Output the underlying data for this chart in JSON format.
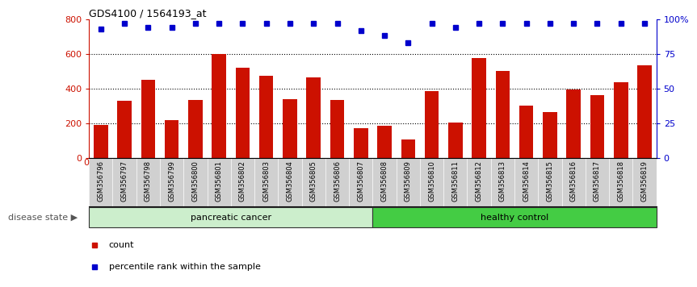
{
  "title": "GDS4100 / 1564193_at",
  "categories": [
    "GSM356796",
    "GSM356797",
    "GSM356798",
    "GSM356799",
    "GSM356800",
    "GSM356801",
    "GSM356802",
    "GSM356803",
    "GSM356804",
    "GSM356805",
    "GSM356806",
    "GSM356807",
    "GSM356808",
    "GSM356809",
    "GSM356810",
    "GSM356811",
    "GSM356812",
    "GSM356813",
    "GSM356814",
    "GSM356815",
    "GSM356816",
    "GSM356817",
    "GSM356818",
    "GSM356819"
  ],
  "bar_values": [
    190,
    330,
    450,
    215,
    335,
    600,
    520,
    475,
    340,
    465,
    335,
    170,
    185,
    105,
    385,
    205,
    575,
    500,
    300,
    265,
    395,
    360,
    435,
    535
  ],
  "percentile_values": [
    93,
    97,
    94,
    94,
    97,
    97,
    97,
    97,
    97,
    97,
    97,
    92,
    88,
    83,
    97,
    94,
    97,
    97,
    97,
    97,
    97,
    97,
    97,
    97
  ],
  "pancreatic_cancer_count": 12,
  "bar_color": "#cc1100",
  "dot_color": "#0000cc",
  "left_ylim": [
    0,
    800
  ],
  "right_ylim": [
    0,
    100
  ],
  "left_yticks": [
    0,
    200,
    400,
    600,
    800
  ],
  "right_yticks": [
    0,
    25,
    50,
    75,
    100
  ],
  "right_yticklabels": [
    "0",
    "25",
    "50",
    "75",
    "100%"
  ],
  "pancreatic_color": "#cceecc",
  "healthy_color": "#44cc44",
  "disease_state_label": "disease state",
  "pancreatic_label": "pancreatic cancer",
  "healthy_label": "healthy control",
  "legend_count": "count",
  "legend_percentile": "percentile rank within the sample",
  "xtick_bg_color": "#d0d0d0",
  "grid_dotted_color": "black"
}
